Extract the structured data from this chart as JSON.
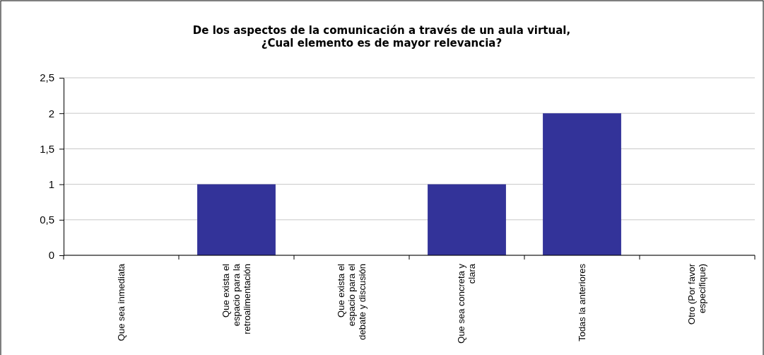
{
  "chart_data": {
    "type": "bar",
    "title": "De los aspectos de la comunicación a través de un aula virtual,\n¿Cual elemento es de mayor relevancia?",
    "categories": [
      "Que sea inmediata",
      "Que exista el\nespacio para la\nretroalimentación",
      "Que exista el\nespacio para el\ndebate y discusión",
      "Que sea concreta y\nclara",
      "Todas la anteriores",
      "Otro (Por favor\nespecifique)"
    ],
    "values": [
      0,
      1,
      0,
      1,
      2,
      0
    ],
    "color": "#333399",
    "ylim": [
      0,
      2.5
    ],
    "yticks": [
      0,
      {
        "value": 0.5,
        "label": "0,5"
      },
      1,
      {
        "value": 1.5,
        "label": "1,5"
      },
      2,
      {
        "value": 2.5,
        "label": "2,5"
      }
    ],
    "grid": "y"
  }
}
